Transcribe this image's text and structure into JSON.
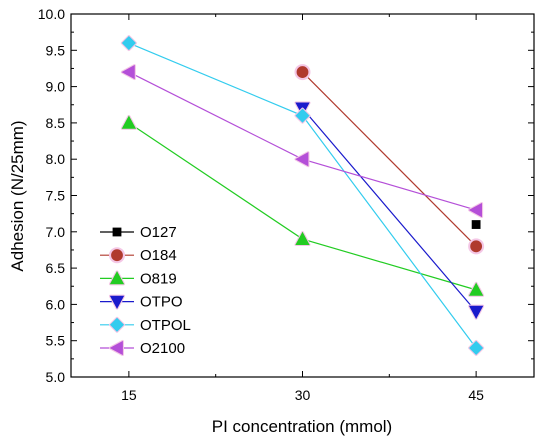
{
  "chart_data": {
    "type": "line",
    "title": "",
    "xlabel": "PI concentration (mmol)",
    "ylabel": "Adhesion (N/25mm)",
    "x": [
      15,
      30,
      45
    ],
    "xticks": [
      15,
      30,
      45
    ],
    "xlim": [
      10,
      50
    ],
    "ylim": [
      5.0,
      10.0
    ],
    "yticks": [
      "5.0",
      "5.5",
      "6.0",
      "6.5",
      "7.0",
      "7.5",
      "8.0",
      "8.5",
      "9.0",
      "9.5",
      "10.0"
    ],
    "grid": false,
    "legend_position": "bottom-left",
    "series": [
      {
        "name": "O127",
        "color": "#000000",
        "marker": "square",
        "points": [
          [
            45,
            7.1
          ]
        ]
      },
      {
        "name": "O184",
        "color": "#b03a2e",
        "marker": "circle",
        "points": [
          [
            30,
            9.2
          ],
          [
            45,
            6.8
          ]
        ]
      },
      {
        "name": "O819",
        "color": "#22cc22",
        "marker": "triangle-up",
        "points": [
          [
            15,
            8.5
          ],
          [
            30,
            6.9
          ],
          [
            45,
            6.2
          ]
        ]
      },
      {
        "name": "OTPO",
        "color": "#1a1acc",
        "marker": "triangle-down",
        "points": [
          [
            30,
            8.7
          ],
          [
            45,
            5.9
          ]
        ]
      },
      {
        "name": "OTPOL",
        "color": "#33ccee",
        "marker": "diamond",
        "points": [
          [
            15,
            9.6
          ],
          [
            30,
            8.6
          ],
          [
            45,
            5.4
          ]
        ]
      },
      {
        "name": "O2100",
        "color": "#b44fd8",
        "marker": "triangle-left",
        "points": [
          [
            15,
            9.2
          ],
          [
            30,
            8.0
          ],
          [
            45,
            7.3
          ]
        ]
      }
    ]
  }
}
